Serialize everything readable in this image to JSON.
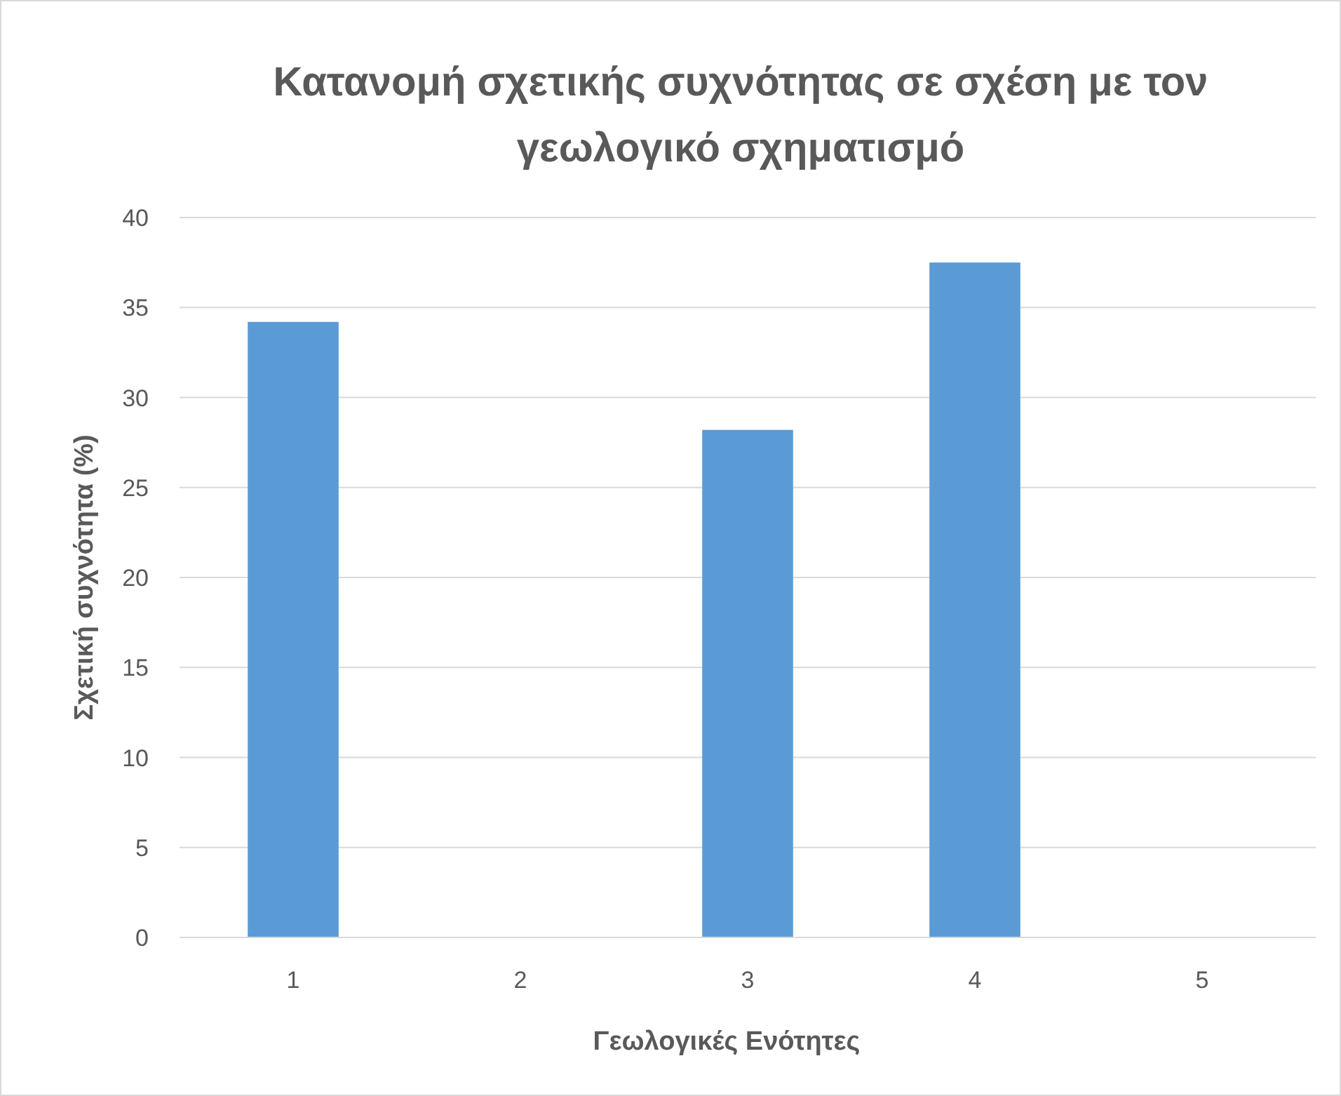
{
  "chart_data": {
    "type": "bar",
    "title": "Κατανομή σχετικής συχνότητας σε σχέση με τον γεωλογικό σχηματισμό",
    "xlabel": "Γεωλογικές Ενότητες",
    "ylabel": "Σχετική συχνότητα (%)",
    "categories": [
      "1",
      "2",
      "3",
      "4",
      "5"
    ],
    "values": [
      34.2,
      0,
      28.2,
      37.5,
      0
    ],
    "color": "#5b9bd5",
    "ylim": [
      0,
      40
    ],
    "yticks": [
      0,
      5,
      10,
      15,
      20,
      25,
      30,
      35,
      40
    ],
    "grid": "y"
  }
}
